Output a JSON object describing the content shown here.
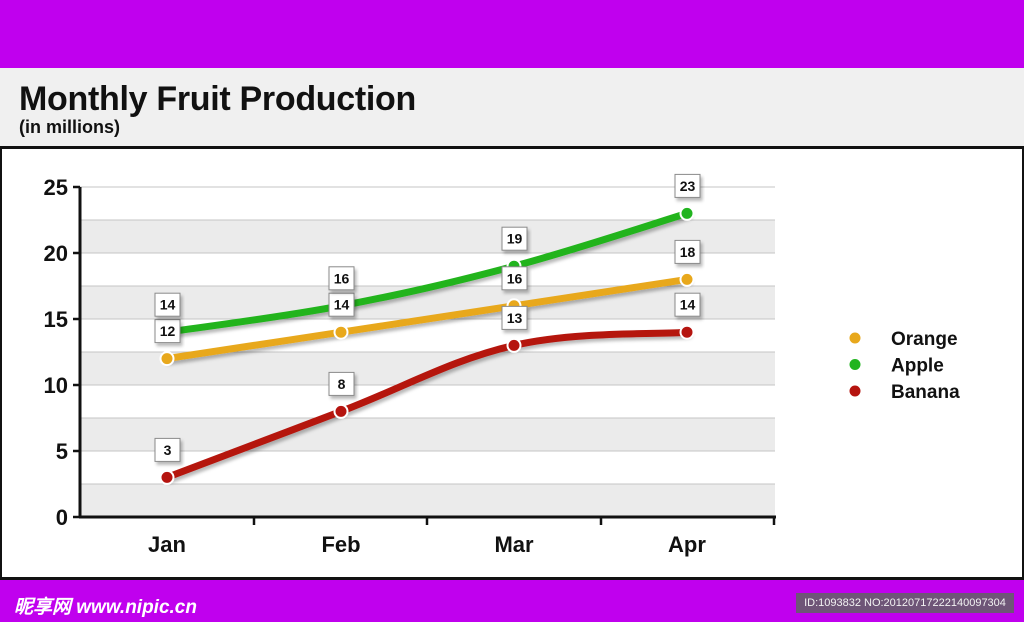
{
  "header": {
    "title": "Monthly Fruit Production",
    "subtitle": "(in millions)"
  },
  "colors": {
    "banner": "#c000ee",
    "band": "#f0f0f0",
    "orange": "#e8a81c",
    "apple": "#21b41f",
    "banana": "#b5140f"
  },
  "chart_data": {
    "type": "line",
    "title": "Monthly Fruit Production",
    "subtitle": "(in millions)",
    "xlabel": "",
    "ylabel": "",
    "categories": [
      "Jan",
      "Feb",
      "Mar",
      "Apr"
    ],
    "ylim": [
      0,
      25
    ],
    "yticks": [
      "0",
      "5",
      "10",
      "15",
      "20",
      "25"
    ],
    "ytick_values": [
      0,
      5,
      10,
      15,
      20,
      25
    ],
    "grid": true,
    "legend_position": "right",
    "series": [
      {
        "name": "Orange",
        "color": "#e8a81c",
        "values": [
          12,
          14,
          16,
          18
        ],
        "labels": [
          "12",
          "14",
          "16",
          "18"
        ]
      },
      {
        "name": "Apple",
        "color": "#21b41f",
        "values": [
          14,
          16,
          19,
          23
        ],
        "labels": [
          "14",
          "16",
          "19",
          "23"
        ]
      },
      {
        "name": "Banana",
        "color": "#b5140f",
        "values": [
          3,
          8,
          13,
          14
        ],
        "labels": [
          "3",
          "8",
          "13",
          "14"
        ]
      }
    ]
  },
  "watermark": {
    "logo": "昵享网 www.nipic.cn",
    "id_text": "ID:1093832 NO:20120717222140097304"
  }
}
